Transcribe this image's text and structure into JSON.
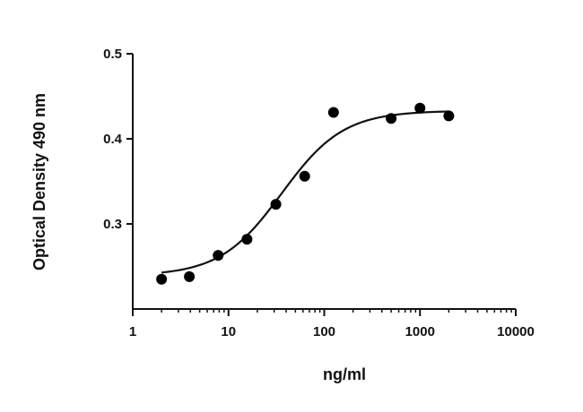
{
  "chart_data": {
    "type": "scatter",
    "xlabel": "ng/ml",
    "ylabel": "Optical Density 490 nm",
    "x_scale": "log",
    "xlim": [
      1,
      10000
    ],
    "ylim": [
      0.2,
      0.5
    ],
    "x_ticks": [
      1,
      10,
      100,
      1000,
      10000
    ],
    "x_tick_labels": [
      "1",
      "10",
      "100",
      "1000",
      "10000"
    ],
    "y_ticks": [
      0.3,
      0.4,
      0.5
    ],
    "y_tick_labels": [
      "0.3",
      "0.4",
      "0.5"
    ],
    "grid": false,
    "series": [
      {
        "points": [
          {
            "x": 2,
            "y": 0.235
          },
          {
            "x": 3.9,
            "y": 0.238
          },
          {
            "x": 7.8,
            "y": 0.263
          },
          {
            "x": 15.6,
            "y": 0.282
          },
          {
            "x": 31.25,
            "y": 0.323
          },
          {
            "x": 62.5,
            "y": 0.356
          },
          {
            "x": 125,
            "y": 0.431
          },
          {
            "x": 500,
            "y": 0.424
          },
          {
            "x": 1000,
            "y": 0.436
          },
          {
            "x": 2000,
            "y": 0.427
          }
        ],
        "color": "#000000"
      }
    ],
    "fit_curve": {
      "model": "4PL",
      "bottom": 0.239,
      "top": 0.433,
      "ec50": 36,
      "hill": 1.35,
      "x_range": [
        2,
        2000
      ],
      "color": "#111111"
    }
  }
}
